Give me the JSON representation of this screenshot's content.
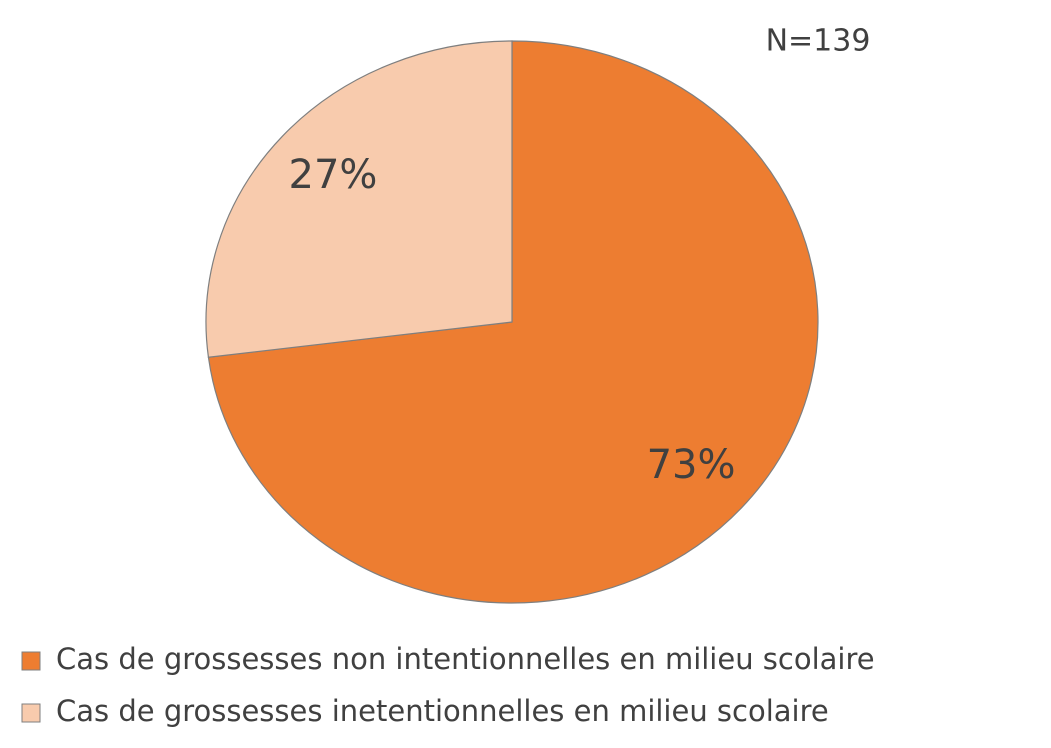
{
  "chart_data": {
    "type": "pie",
    "annotation": "N=139",
    "categories": [
      "Cas de grossesses non intentionnelles en milieu scolaire",
      "Cas de grossesses inetentionnelles en milieu scolaire"
    ],
    "values": [
      73,
      27
    ],
    "value_labels": [
      "73%",
      "27%"
    ],
    "colors": [
      "#ED7D31",
      "#F8CBAD"
    ],
    "legend": "bottom"
  }
}
